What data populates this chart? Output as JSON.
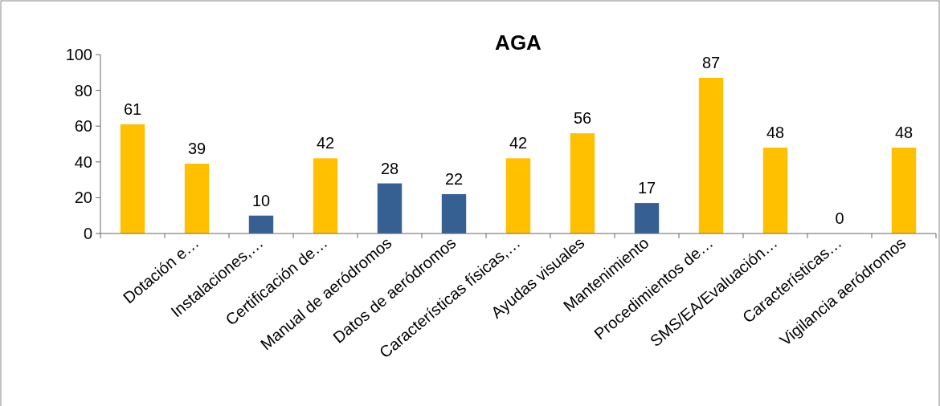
{
  "chart_data": {
    "type": "bar",
    "title": "AGA",
    "categories": [
      null,
      "Dotación e…",
      "Instalaciones,…",
      "Certificación de…",
      "Manual de aeródromos",
      "Datos de aeródromos",
      "Características físicas,…",
      "Ayudas visuales",
      "Mantenimiento",
      "Procedimientos de…",
      "SMS/EA/Evaluación…",
      "Características…",
      "Vigilancia aeródromos"
    ],
    "values": [
      61,
      39,
      10,
      42,
      28,
      22,
      42,
      56,
      17,
      87,
      48,
      0,
      48
    ],
    "colors": [
      "#ffc000",
      "#ffc000",
      "#376092",
      "#ffc000",
      "#376092",
      "#376092",
      "#ffc000",
      "#ffc000",
      "#376092",
      "#ffc000",
      "#ffc000",
      "#ffc000",
      "#ffc000"
    ],
    "ylim": [
      0,
      100
    ],
    "yticks": [
      0,
      20,
      40,
      60,
      80,
      100
    ],
    "data_labels": true
  }
}
